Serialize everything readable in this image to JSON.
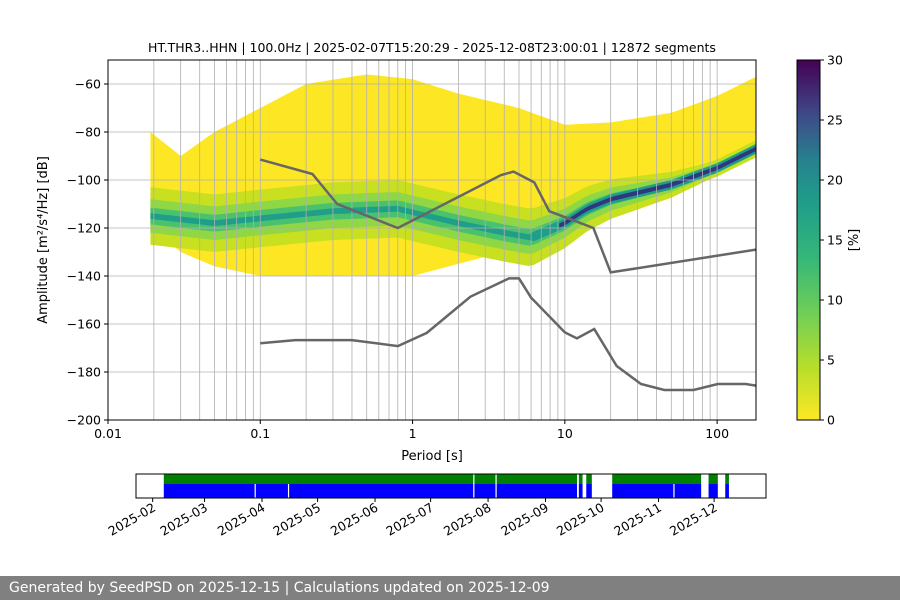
{
  "footer": "Generated by SeedPSD on 2025-12-15 | Calculations updated on 2025-12-09",
  "chart_data": [
    {
      "type": "heatmap",
      "title": "HT.THR3..HHN | 100.0Hz | 2025-02-07T15:20:29 - 2025-12-08T23:00:01 | 12872 segments",
      "xlabel": "Period [s]",
      "ylabel": "Amplitude [m²/s⁴/Hz] [dB]",
      "xscale": "log",
      "xlim": [
        0.01,
        180
      ],
      "ylim": [
        -200,
        -50
      ],
      "xticks": [
        {
          "v": 0.01,
          "label": "0.01"
        },
        {
          "v": 0.1,
          "label": "0.1"
        },
        {
          "v": 1,
          "label": "1"
        },
        {
          "v": 10,
          "label": "10"
        },
        {
          "v": 100,
          "label": "100"
        }
      ],
      "yticks": [
        -200,
        -180,
        -160,
        -140,
        -120,
        -100,
        -80,
        -60
      ],
      "grid": true,
      "colorbar": {
        "label": "[%]",
        "range": [
          0,
          30
        ],
        "ticks": [
          0,
          5,
          10,
          15,
          20,
          25,
          30
        ],
        "colormap": "viridis_r"
      },
      "density": {
        "upper_envelope": [
          [
            0.019,
            -80
          ],
          [
            0.03,
            -90
          ],
          [
            0.05,
            -80
          ],
          [
            0.1,
            -70
          ],
          [
            0.2,
            -60
          ],
          [
            0.5,
            -56
          ],
          [
            1,
            -58
          ],
          [
            2,
            -64
          ],
          [
            5,
            -70
          ],
          [
            10,
            -77
          ],
          [
            20,
            -76
          ],
          [
            50,
            -72
          ],
          [
            100,
            -65
          ],
          [
            180,
            -57
          ]
        ],
        "lower_envelope": [
          [
            0.019,
            -120
          ],
          [
            0.03,
            -130
          ],
          [
            0.05,
            -136
          ],
          [
            0.1,
            -140
          ],
          [
            1,
            -140
          ],
          [
            3,
            -132
          ],
          [
            5,
            -127
          ],
          [
            7,
            -127
          ],
          [
            10,
            -122
          ],
          [
            20,
            -110
          ],
          [
            50,
            -100
          ],
          [
            100,
            -95
          ],
          [
            180,
            -90
          ]
        ],
        "mode": [
          [
            0.019,
            -115
          ],
          [
            0.05,
            -118
          ],
          [
            0.1,
            -116
          ],
          [
            0.3,
            -113
          ],
          [
            0.8,
            -112
          ],
          [
            2,
            -118
          ],
          [
            4,
            -122
          ],
          [
            6,
            -124
          ],
          [
            10,
            -118
          ],
          [
            14,
            -112
          ],
          [
            20,
            -108
          ],
          [
            50,
            -102
          ],
          [
            100,
            -95
          ],
          [
            180,
            -87
          ]
        ]
      },
      "series": [
        {
          "color": "#666666",
          "points": [
            [
              0.1,
              -91.5
            ],
            [
              0.22,
              -97.5
            ],
            [
              0.32,
              -110
            ],
            [
              0.8,
              -120
            ],
            [
              3.8,
              -98
            ],
            [
              4.6,
              -96.5
            ],
            [
              6.3,
              -101
            ],
            [
              7.9,
              -113
            ],
            [
              15.4,
              -120
            ],
            [
              20,
              -138.5
            ],
            [
              180,
              -129
            ]
          ]
        },
        {
          "color": "#666666",
          "points": [
            [
              0.1,
              -168
            ],
            [
              0.17,
              -166.7
            ],
            [
              0.4,
              -166.7
            ],
            [
              0.8,
              -169.2
            ],
            [
              1.24,
              -163.7
            ],
            [
              2.4,
              -148.6
            ],
            [
              4.3,
              -141
            ],
            [
              5,
              -141
            ],
            [
              6,
              -149
            ],
            [
              10,
              -163.5
            ],
            [
              12,
              -166
            ],
            [
              15.6,
              -162.1
            ],
            [
              21.9,
              -177.5
            ],
            [
              31.6,
              -185
            ],
            [
              45,
              -187.5
            ],
            [
              70,
              -187.5
            ],
            [
              101,
              -185
            ],
            [
              154,
              -185
            ],
            [
              180,
              -185.7
            ]
          ]
        }
      ]
    },
    {
      "type": "timeline",
      "xlim": [
        "2025-01-23",
        "2025-12-29"
      ],
      "xticks": [
        "2025-02",
        "2025-03",
        "2025-04",
        "2025-05",
        "2025-06",
        "2025-07",
        "2025-08",
        "2025-09",
        "2025-10",
        "2025-11",
        "2025-12"
      ],
      "colors": {
        "available": "#008000",
        "used": "#0000ff"
      },
      "available": [
        [
          "2025-02-07",
          "2025-09-18"
        ],
        [
          "2025-09-19",
          "2025-09-21"
        ],
        [
          "2025-09-23",
          "2025-09-26"
        ],
        [
          "2025-10-07",
          "2025-11-24"
        ],
        [
          "2025-11-28",
          "2025-12-03"
        ],
        [
          "2025-12-07",
          "2025-12-09"
        ]
      ],
      "used_gaps": [
        "2025-03-28",
        "2025-04-15",
        "2025-07-24",
        "2025-08-05",
        "2025-11-09"
      ],
      "available_gaps": [
        "2025-07-24",
        "2025-08-05"
      ]
    }
  ]
}
